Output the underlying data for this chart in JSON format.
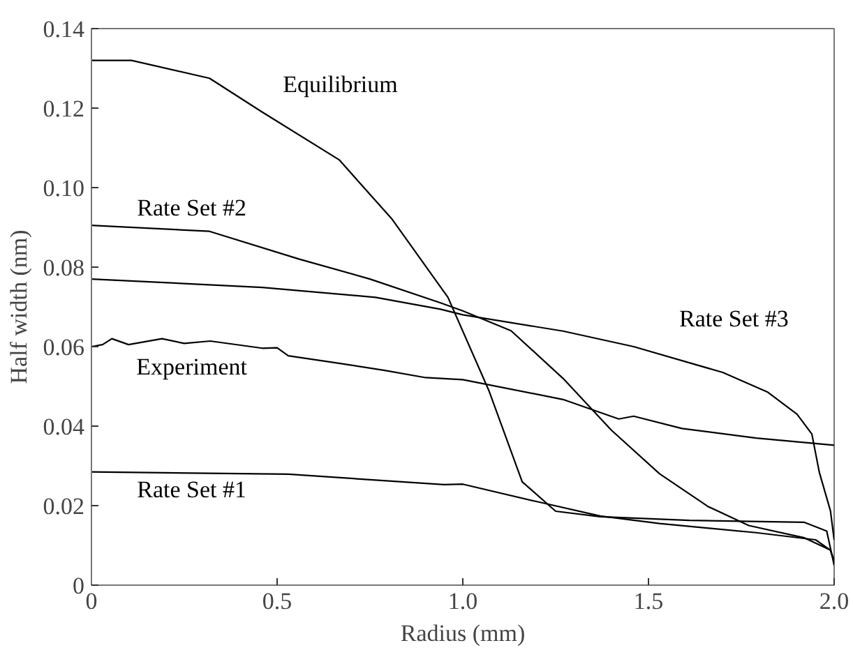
{
  "chart_data": {
    "type": "line",
    "xlabel": "Radius (mm)",
    "ylabel": "Half width (nm)",
    "xlim": [
      0,
      2.0
    ],
    "ylim": [
      0,
      0.14
    ],
    "xticks": [
      0,
      0.5,
      {
        "value": 1.0,
        "label": "1.0"
      },
      1.5,
      {
        "value": 2.0,
        "label": "2.0"
      }
    ],
    "yticks": [
      0,
      0.02,
      0.04,
      0.06,
      0.08,
      {
        "value": 0.1,
        "label": "0.10"
      },
      0.12,
      0.14
    ],
    "grid": false,
    "legend": false,
    "line_style": "solid",
    "marker": "none",
    "series": [
      {
        "name": "Equilibrium",
        "color": "#000000",
        "x": [
          0,
          0.108,
          0.318,
          0.46,
          0.667,
          0.81,
          0.96,
          1.07,
          1.16,
          1.25,
          1.37,
          1.61,
          1.92,
          1.98,
          2.0
        ],
        "values": [
          0.132,
          0.132,
          0.1275,
          0.119,
          0.107,
          0.092,
          0.0724,
          0.049,
          0.026,
          0.0186,
          0.0172,
          0.0163,
          0.0158,
          0.0136,
          0.005
        ]
      },
      {
        "name": "Rate Set #2",
        "color": "#000000",
        "x": [
          0,
          0.318,
          0.56,
          0.75,
          0.94,
          1.0,
          1.13,
          1.27,
          1.4,
          1.53,
          1.66,
          1.77,
          1.92,
          1.99,
          2.0
        ],
        "values": [
          0.0905,
          0.089,
          0.082,
          0.077,
          0.071,
          0.069,
          0.064,
          0.052,
          0.039,
          0.028,
          0.0198,
          0.015,
          0.0119,
          0.0088,
          0.006
        ]
      },
      {
        "name": "Rate Set #3",
        "color": "#000000",
        "x": [
          0,
          0.46,
          0.765,
          0.94,
          1.0,
          1.27,
          1.46,
          1.7,
          1.82,
          1.9,
          1.94,
          1.96,
          1.99,
          2.0
        ],
        "values": [
          0.077,
          0.0749,
          0.0724,
          0.0694,
          0.068,
          0.0639,
          0.06,
          0.0535,
          0.0486,
          0.043,
          0.038,
          0.0284,
          0.0187,
          0.0114
        ]
      },
      {
        "name": "Experiment",
        "color": "#000000",
        "x": [
          0,
          0.03,
          0.055,
          0.1,
          0.19,
          0.25,
          0.32,
          0.46,
          0.5,
          0.53,
          0.66,
          0.79,
          0.9,
          1.0,
          1.27,
          1.42,
          1.46,
          1.59,
          1.79,
          2.0
        ],
        "values": [
          0.06,
          0.0605,
          0.062,
          0.0605,
          0.062,
          0.0608,
          0.0614,
          0.0596,
          0.0597,
          0.0577,
          0.0559,
          0.054,
          0.0522,
          0.0517,
          0.0467,
          0.0418,
          0.0425,
          0.0394,
          0.037,
          0.0352
        ]
      },
      {
        "name": "Rate Set #1",
        "color": "#000000",
        "x": [
          0,
          0.53,
          0.95,
          1.0,
          1.2,
          1.37,
          1.53,
          1.79,
          1.95,
          1.99,
          2.0
        ],
        "values": [
          0.0285,
          0.0279,
          0.0253,
          0.0254,
          0.021,
          0.0174,
          0.0155,
          0.0132,
          0.0114,
          0.0088,
          0.006
        ]
      }
    ]
  }
}
